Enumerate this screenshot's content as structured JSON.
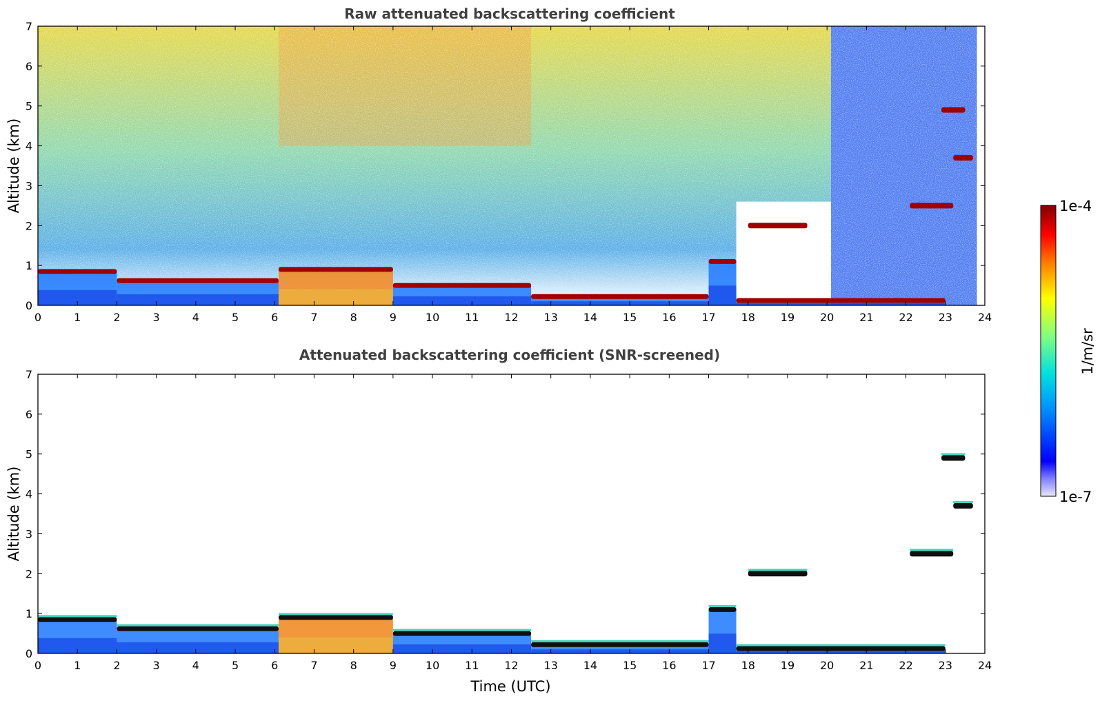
{
  "chart_data": [
    {
      "type": "heatmap",
      "title": "Raw attenuated backscattering coefficient",
      "xlabel": "",
      "ylabel": "Altitude (km)",
      "xlim": [
        0,
        24
      ],
      "ylim": [
        0,
        7
      ],
      "xticks": [
        0,
        1,
        2,
        3,
        4,
        5,
        6,
        7,
        8,
        9,
        10,
        11,
        12,
        13,
        14,
        15,
        16,
        17,
        18,
        19,
        20,
        21,
        22,
        23,
        24
      ],
      "yticks": [
        0,
        1,
        2,
        3,
        4,
        5,
        6,
        7
      ],
      "screened": false,
      "layers": [
        {
          "t_start": 0.0,
          "t_end": 2.0,
          "altitude_km": 0.85
        },
        {
          "t_start": 2.0,
          "t_end": 6.1,
          "altitude_km": 0.62
        },
        {
          "t_start": 6.1,
          "t_end": 9.0,
          "altitude_km": 0.9
        },
        {
          "t_start": 9.0,
          "t_end": 12.5,
          "altitude_km": 0.5
        },
        {
          "t_start": 12.5,
          "t_end": 17.0,
          "altitude_km": 0.22
        },
        {
          "t_start": 17.0,
          "t_end": 17.7,
          "altitude_km": 1.1
        },
        {
          "t_start": 17.7,
          "t_end": 23.0,
          "altitude_km": 0.12
        },
        {
          "t_start": 18.0,
          "t_end": 19.5,
          "altitude_km": 2.0
        },
        {
          "t_start": 22.1,
          "t_end": 23.2,
          "altitude_km": 2.5
        },
        {
          "t_start": 22.9,
          "t_end": 23.5,
          "altitude_km": 4.9
        },
        {
          "t_start": 23.2,
          "t_end": 23.7,
          "altitude_km": 3.7
        }
      ]
    },
    {
      "type": "heatmap",
      "title": "Attenuated backscattering coefficient (SNR-screened)",
      "xlabel": "Time (UTC)",
      "ylabel": "Altitude (km)",
      "xlim": [
        0,
        24
      ],
      "ylim": [
        0,
        7
      ],
      "xticks": [
        0,
        1,
        2,
        3,
        4,
        5,
        6,
        7,
        8,
        9,
        10,
        11,
        12,
        13,
        14,
        15,
        16,
        17,
        18,
        19,
        20,
        21,
        22,
        23,
        24
      ],
      "yticks": [
        0,
        1,
        2,
        3,
        4,
        5,
        6,
        7
      ],
      "screened": true,
      "layers": [
        {
          "t_start": 0.0,
          "t_end": 2.0,
          "altitude_km": 0.85
        },
        {
          "t_start": 2.0,
          "t_end": 6.1,
          "altitude_km": 0.62
        },
        {
          "t_start": 6.1,
          "t_end": 9.0,
          "altitude_km": 0.9
        },
        {
          "t_start": 9.0,
          "t_end": 12.5,
          "altitude_km": 0.5
        },
        {
          "t_start": 12.5,
          "t_end": 17.0,
          "altitude_km": 0.22
        },
        {
          "t_start": 17.0,
          "t_end": 17.7,
          "altitude_km": 1.1
        },
        {
          "t_start": 17.7,
          "t_end": 23.0,
          "altitude_km": 0.12
        },
        {
          "t_start": 18.0,
          "t_end": 19.5,
          "altitude_km": 2.0
        },
        {
          "t_start": 22.1,
          "t_end": 23.2,
          "altitude_km": 2.5
        },
        {
          "t_start": 22.9,
          "t_end": 23.5,
          "altitude_km": 4.9
        },
        {
          "t_start": 23.2,
          "t_end": 23.7,
          "altitude_km": 3.7
        }
      ]
    }
  ],
  "colorbar": {
    "label": "1/m/sr",
    "max_label": "1e-4",
    "min_label": "1e-7",
    "scale": "log",
    "colormap": "jet",
    "colors": [
      "#e8e8f8",
      "#0000ff",
      "#00a0ff",
      "#00e0d0",
      "#80ff80",
      "#ffff00",
      "#ff8000",
      "#ff0000",
      "#800000"
    ]
  }
}
